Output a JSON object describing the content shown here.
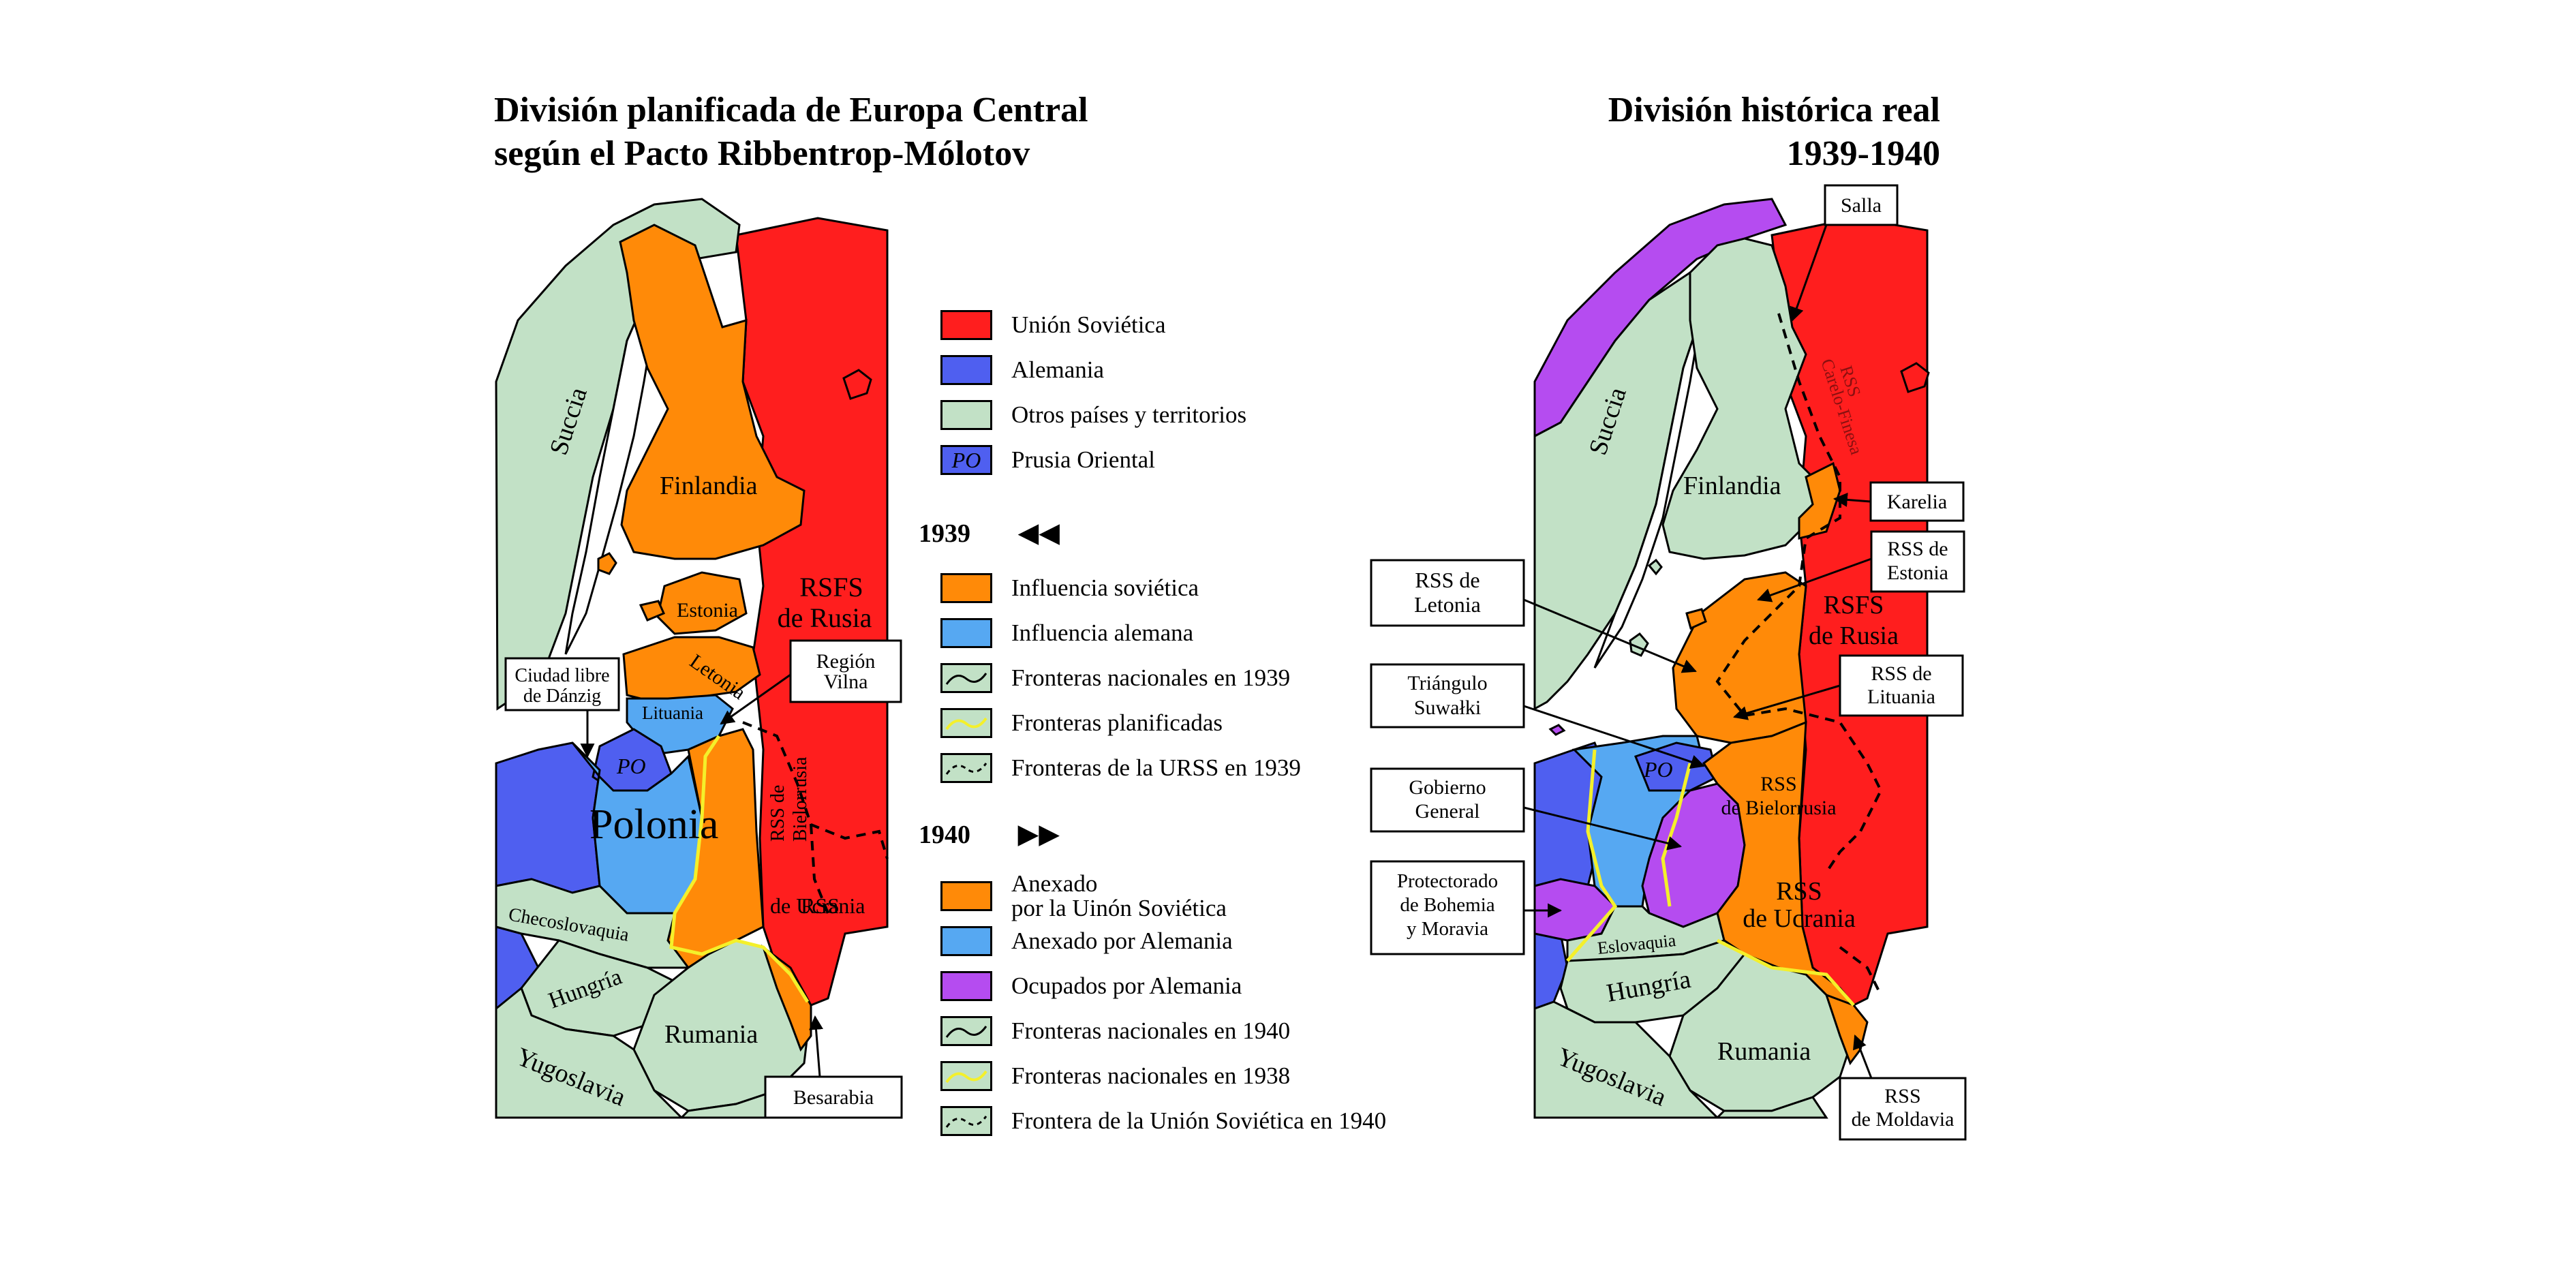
{
  "titles": {
    "left": [
      "División planificada de Europa Central",
      "según el Pacto Ribbentrop-Mólotov"
    ],
    "right": [
      "División histórica real",
      "1939-1940"
    ]
  },
  "colors": {
    "soviet_union": "#ff1e1e",
    "germany": "#4f5ff0",
    "other": "#c2e1c6",
    "soviet_influence": "#ff8a08",
    "german_influence": "#56a8f2",
    "occupied": "#b54cf0",
    "planned_border": "#f4f02a",
    "sea": "#ffffff"
  },
  "legend": {
    "items": [
      {
        "label": "Unión Soviética",
        "color": "#ff1e1e"
      },
      {
        "label": "Alemania",
        "color": "#4f5ff0"
      },
      {
        "label": "Otros países y territorios",
        "color": "#c2e1c6"
      },
      {
        "label": "Prusia Oriental",
        "color": "#4f5ff0",
        "badge": "PO"
      }
    ],
    "sec1939": {
      "year": "1939",
      "arrows": "◀◀",
      "items": [
        {
          "label": "Influencia soviética",
          "color": "#ff8a08"
        },
        {
          "label": "Influencia alemana",
          "color": "#56a8f2"
        },
        {
          "label": "Fronteras nacionales en 1939",
          "color": "#c2e1c6",
          "line": "solid"
        },
        {
          "label": "Fronteras planificadas",
          "color": "#c2e1c6",
          "line": "yellow"
        },
        {
          "label": "Fronteras de la URSS en 1939",
          "color": "#c2e1c6",
          "line": "dashed"
        }
      ]
    },
    "sec1940": {
      "year": "1940",
      "arrows": "▶▶",
      "items": [
        {
          "label": [
            "Anexado",
            "por la Uinón Soviética"
          ],
          "color": "#ff8a08"
        },
        {
          "label": "Anexado por Alemania",
          "color": "#56a8f2"
        },
        {
          "label": "Ocupados por Alemania",
          "color": "#b54cf0"
        },
        {
          "label": "Fronteras nacionales en 1940",
          "color": "#c2e1c6",
          "line": "solid"
        },
        {
          "label": "Fronteras nacionales en 1938",
          "color": "#c2e1c6",
          "line": "yellow"
        },
        {
          "label": "Frontera de la Unión Soviética en 1940",
          "color": "#c2e1c6",
          "line": "dashed"
        }
      ]
    }
  },
  "left_map": {
    "labels": {
      "suecia": "Succia",
      "finlandia": "Finlandia",
      "estonia": "Estonia",
      "letonia": "Letonia",
      "lituania": "Lituania",
      "rsfs": [
        "RSFS",
        "de Rusia"
      ],
      "bielorrusia": [
        "RSS de",
        "Bielorrusia"
      ],
      "ucrania": "de Ucrania",
      "rss_overlap": "RSS",
      "polonia": "Polonia",
      "po": "PO",
      "checoslovaquia": "Checoslovaquia",
      "hungria": "Hungría",
      "rumania": "Rumania",
      "yugoslavia": "Yugoslavia"
    },
    "callouts": {
      "danzig": [
        "Ciudad libre",
        "de Dánzig"
      ],
      "vilna": [
        "Región",
        "Vilna"
      ],
      "besarabia": "Besarabia"
    }
  },
  "right_map": {
    "labels": {
      "suecia": "Succia",
      "finlandia": "Finlandia",
      "karelo": [
        "RSS",
        "Carelo-Finesa"
      ],
      "rsfs": [
        "RSFS",
        "de Rusia"
      ],
      "po": "PO",
      "bielorrusia": [
        "RSS",
        "de Bielorrusia"
      ],
      "ucrania": [
        "RSS",
        "de Ucrania"
      ],
      "eslovaquia": "Eslovaquia",
      "hungria": "Hungría",
      "rumania": "Rumania",
      "yugoslavia": "Yugoslavia"
    },
    "callouts": {
      "salla": "Salla",
      "karelia": "Karelia",
      "estonia": [
        "RSS de",
        "Estonia"
      ],
      "letonia": [
        "RSS de",
        "Letonia"
      ],
      "lituania": [
        "RSS de",
        "Lituania"
      ],
      "suwalki": [
        "Triángulo",
        "Suwałki"
      ],
      "gobierno": [
        "Gobierno",
        "General"
      ],
      "protectorado": [
        "Protectorado",
        "de Bohemia",
        "y Moravia"
      ],
      "moldavia": [
        "RSS",
        "de Moldavia"
      ]
    }
  }
}
